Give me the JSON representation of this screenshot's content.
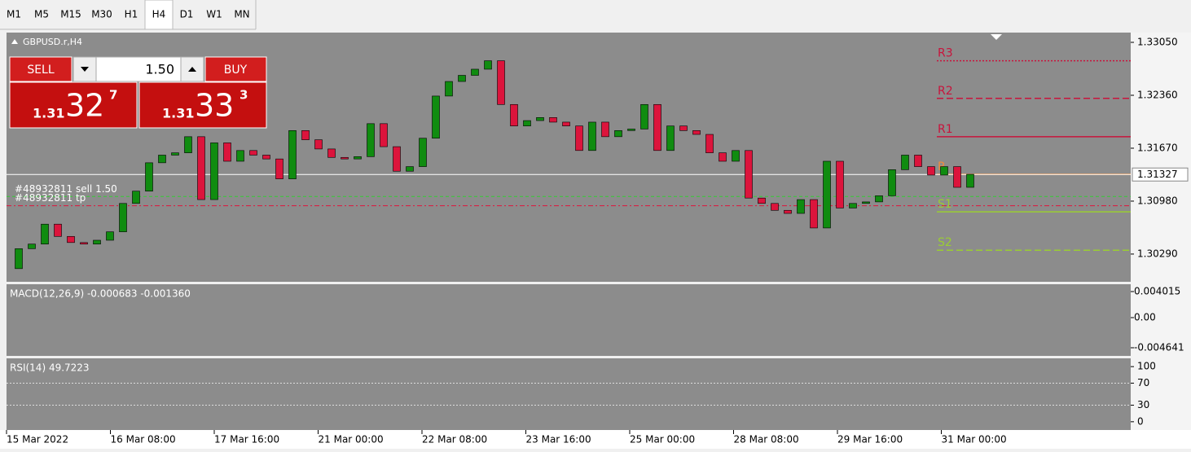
{
  "toolbar": {
    "timeframes": [
      "M1",
      "M5",
      "M15",
      "M30",
      "H1",
      "H4",
      "D1",
      "W1",
      "MN"
    ],
    "selected": "H4"
  },
  "chart": {
    "symbol": "GBPUSD.r,H4",
    "trade_panel": {
      "sell": "SELL",
      "buy": "BUY",
      "lot": "1.50",
      "bid": {
        "big": "1.31",
        "pips": "32",
        "point": "7"
      },
      "ask": {
        "big": "1.31",
        "pips": "33",
        "point": "3"
      }
    },
    "price_axis": {
      "ylim": [
        1.29939,
        1.33135
      ],
      "ticks": [
        {
          "value": 1.3305,
          "label": "1.33050"
        },
        {
          "value": 1.3236,
          "label": "1.32360"
        },
        {
          "value": 1.3167,
          "label": "1.31670"
        },
        {
          "value": 1.3098,
          "label": "1.30980"
        },
        {
          "value": 1.3029,
          "label": "1.30290"
        }
      ]
    },
    "current_price": {
      "value": 1.31327,
      "label": "1.31327"
    },
    "candles": {
      "open": [
        1.301,
        1.3036,
        1.3042,
        1.3068,
        1.3052,
        1.3044,
        1.3042,
        1.3047,
        1.3058,
        1.3095,
        1.3111,
        1.3148,
        1.3158,
        1.3161,
        1.3182,
        1.31,
        1.3174,
        1.315,
        1.3164,
        1.3158,
        1.3153,
        1.3127,
        1.319,
        1.3178,
        1.3166,
        1.3155,
        1.3153,
        1.3156,
        1.3199,
        1.3169,
        1.3137,
        1.3143,
        1.318,
        1.3235,
        1.3254,
        1.3262,
        1.327,
        1.3281,
        1.3224,
        1.3196,
        1.3203,
        1.3207,
        1.3201,
        1.3196,
        1.3164,
        1.3201,
        1.3182,
        1.319,
        1.3192,
        1.3224,
        1.3164,
        1.3196,
        1.319,
        1.3185,
        1.3161,
        1.315,
        1.3164,
        1.3102,
        1.3095,
        1.3086,
        1.3082,
        1.31,
        1.3063,
        1.315,
        1.3089,
        1.3095,
        1.3097,
        1.3105,
        1.3139,
        1.3158,
        1.3143,
        1.3132,
        1.3143,
        1.3116
      ],
      "close": [
        1.3036,
        1.3042,
        1.3068,
        1.3052,
        1.3044,
        1.3042,
        1.3047,
        1.3058,
        1.3095,
        1.3111,
        1.3148,
        1.3158,
        1.3161,
        1.3182,
        1.31,
        1.3174,
        1.315,
        1.3164,
        1.3158,
        1.3153,
        1.3127,
        1.319,
        1.3178,
        1.3166,
        1.3155,
        1.3153,
        1.3156,
        1.3199,
        1.3169,
        1.3137,
        1.3143,
        1.318,
        1.3235,
        1.3254,
        1.3262,
        1.327,
        1.3281,
        1.3224,
        1.3196,
        1.3203,
        1.3207,
        1.3201,
        1.3196,
        1.3164,
        1.3201,
        1.3182,
        1.319,
        1.3192,
        1.3224,
        1.3164,
        1.3196,
        1.319,
        1.3185,
        1.3161,
        1.315,
        1.3164,
        1.3102,
        1.3095,
        1.3086,
        1.3082,
        1.31,
        1.3063,
        1.315,
        1.3089,
        1.3095,
        1.3097,
        1.3105,
        1.3139,
        1.3158,
        1.3143,
        1.3132,
        1.3143,
        1.3116,
        1.3133
      ]
    },
    "pivots": [
      {
        "name": "R3",
        "value": 1.3281,
        "color": "#c8143c",
        "dash": "2,2"
      },
      {
        "name": "R2",
        "value": 1.3232,
        "color": "#c8143c",
        "dash": "8,4"
      },
      {
        "name": "R1",
        "value": 1.3182,
        "color": "#c8143c",
        "dash": "none"
      },
      {
        "name": "P",
        "value": 1.3133,
        "color": "#f08c3c",
        "dash": "none"
      },
      {
        "name": "S1",
        "value": 1.3084,
        "color": "#9acd32",
        "dash": "none"
      },
      {
        "name": "S2",
        "value": 1.3034,
        "color": "#9acd32",
        "dash": "8,4"
      }
    ],
    "orders": [
      {
        "label": "#48932811 sell 1.50",
        "value": 1.3104,
        "color": "#32cd32",
        "dash": "4,3"
      },
      {
        "label": "#48932811 tp",
        "value": 1.3092,
        "color": "#e0143c",
        "dash": "6,3,2,3"
      }
    ],
    "time_labels": [
      "15 Mar 2022",
      "16 Mar 08:00",
      "17 Mar 16:00",
      "21 Mar 00:00",
      "22 Mar 08:00",
      "23 Mar 16:00",
      "25 Mar 00:00",
      "28 Mar 08:00",
      "29 Mar 16:00",
      "31 Mar 00:00"
    ],
    "macd": {
      "label": "MACD(12,26,9) -0.000683 -0.001360",
      "ylim": [
        -0.005896,
        0.005144
      ],
      "ticks": [
        0.004015,
        {
          "value": 0,
          "label": "0.00"
        },
        -0.004641
      ]
    },
    "rsi": {
      "label": "RSI(14) 49.7223",
      "ylim": [
        -15,
        115
      ],
      "ticks": [
        100,
        70,
        30,
        0
      ],
      "levels": [
        70,
        30
      ]
    }
  }
}
